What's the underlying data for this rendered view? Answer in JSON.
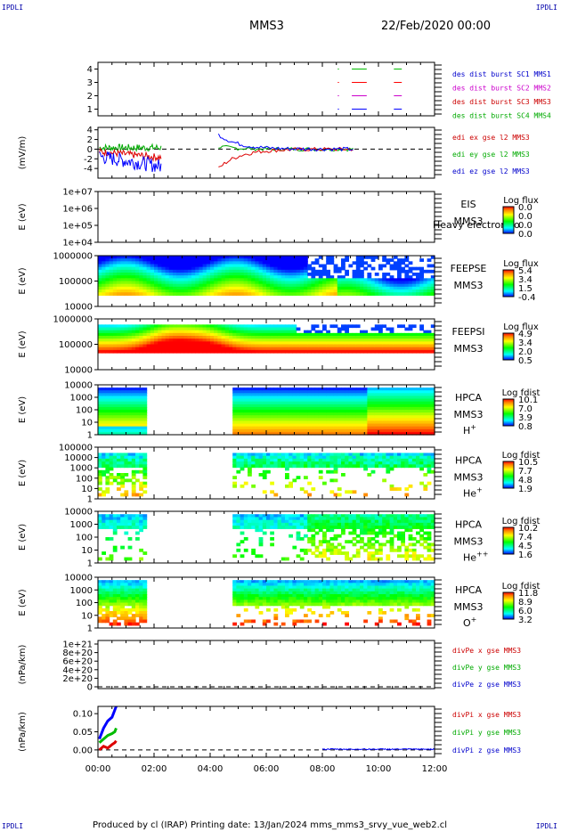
{
  "corners": {
    "tl": "IPDLI",
    "tr": "IPDLI",
    "bl": "IPDLI",
    "br": "IPDLI"
  },
  "header": {
    "spacecraft": "MMS3",
    "date": "22/Feb/2020 00:00"
  },
  "footer": {
    "text": "Produced by cl (IRAP)   Printing date: 13/Jan/2024   mms_mms3_srvy_vue_web2.cl"
  },
  "time_axis": {
    "range_hours": [
      0,
      12
    ],
    "ticks": [
      "00:00",
      "02:00",
      "04:00",
      "06:00",
      "08:00",
      "10:00",
      "12:00"
    ]
  },
  "chart_data": [
    {
      "type": "line",
      "panel": "burst",
      "ylim": [
        0.5,
        4.5
      ],
      "yticks": [
        "4",
        "3",
        "2",
        "1"
      ],
      "legend": [
        "des dist burst SC1 MMS1",
        "des dist burst SC2 MMS2",
        "des dist burst SC3 MMS3",
        "des dist burst SC4 MMS4"
      ],
      "legend_colors": [
        "#0000cc",
        "#cc00cc",
        "#cc0000",
        "#00aa00"
      ],
      "series": [
        {
          "name": "des dist burst SC1 MMS1",
          "level": 4,
          "color": "#00bb00",
          "segments": [
            [
              8.55,
              8.56
            ],
            [
              9.05,
              9.55
            ],
            [
              10.55,
              10.8
            ]
          ]
        },
        {
          "name": "des dist burst SC2 MMS2",
          "level": 3,
          "color": "#ff0000",
          "segments": [
            [
              8.55,
              8.56
            ],
            [
              9.05,
              9.55
            ],
            [
              10.55,
              10.8
            ]
          ]
        },
        {
          "name": "des dist burst SC3 MMS3",
          "level": 2,
          "color": "#cc00cc",
          "segments": [
            [
              8.55,
              8.56
            ],
            [
              9.05,
              9.55
            ],
            [
              10.55,
              10.8
            ]
          ]
        },
        {
          "name": "des dist burst SC4 MMS4",
          "level": 1,
          "color": "#0000ff",
          "segments": [
            [
              8.55,
              8.56
            ],
            [
              9.05,
              9.55
            ],
            [
              10.55,
              10.8
            ]
          ]
        }
      ]
    },
    {
      "type": "line",
      "panel": "edi",
      "ylabel": "(mV/m)",
      "ylim": [
        -6,
        4.5
      ],
      "yticks": [
        "4",
        "2",
        "0",
        "-2",
        "-4"
      ],
      "legend": [
        "edi ex gse l2 MMS3",
        "edi ey gse l2 MMS3",
        "edi ez gse l2 MMS3"
      ],
      "legend_colors": [
        "#cc0000",
        "#00aa00",
        "#0000cc"
      ],
      "gaps": [
        [
          2.3,
          4.3
        ]
      ],
      "ranges_hours": [
        [
          0.05,
          2.25
        ],
        [
          4.3,
          9.1
        ]
      ]
    },
    {
      "type": "heatmap",
      "panel": "EIS",
      "ylabel": "E (eV)",
      "yticks": [
        "1e+07",
        "1e+06",
        "1e+05",
        "1e+04"
      ],
      "instrument": [
        "EIS",
        "MMS3"
      ],
      "overlay_text": "Heavy electron to",
      "colorbar": {
        "title": "Log flux",
        "ticks": [
          "0.0",
          "0.0",
          "0.0",
          "0.0"
        ]
      },
      "has_data": false
    },
    {
      "type": "heatmap",
      "panel": "FEEPSE",
      "ylabel": "E (eV)",
      "yticks": [
        "1000000",
        "100000",
        "10000"
      ],
      "instrument": [
        "FEEPSE",
        "MMS3"
      ],
      "colorbar": {
        "title": "Log flux",
        "ticks": [
          "5.4",
          "3.4",
          "1.5",
          "-0.4"
        ]
      }
    },
    {
      "type": "heatmap",
      "panel": "FEEPSI",
      "ylabel": "E (eV)",
      "yticks": [
        "1000000",
        "100000",
        "10000"
      ],
      "instrument": [
        "FEEPSI",
        "MMS3"
      ],
      "colorbar": {
        "title": "Log flux",
        "ticks": [
          "4.9",
          "3.4",
          "2.0",
          "0.5"
        ]
      }
    },
    {
      "type": "heatmap",
      "panel": "HPCA H+",
      "ylabel": "E (eV)",
      "yticks": [
        "10000",
        "1000",
        "100",
        "10",
        "1"
      ],
      "instrument": [
        "HPCA",
        "MMS3"
      ],
      "species": "H",
      "species_sup": "+",
      "colorbar": {
        "title": "Log fdist",
        "ticks": [
          "10.1",
          "7.0",
          "3.9",
          "0.8"
        ]
      },
      "gaps": [
        [
          1.72,
          4.85
        ]
      ]
    },
    {
      "type": "heatmap",
      "panel": "HPCA He+",
      "ylabel": "E (eV)",
      "yticks": [
        "100000",
        "10000",
        "1000",
        "100",
        "10",
        "1"
      ],
      "instrument": [
        "HPCA",
        "MMS3"
      ],
      "species": "He",
      "species_sup": "+",
      "colorbar": {
        "title": "Log fdist",
        "ticks": [
          "10.5",
          "7.7",
          "4.8",
          "1.9"
        ]
      },
      "gaps": [
        [
          1.72,
          4.85
        ]
      ]
    },
    {
      "type": "heatmap",
      "panel": "HPCA He++",
      "ylabel": "E (eV)",
      "yticks": [
        "10000",
        "1000",
        "100",
        "10",
        "1"
      ],
      "instrument": [
        "HPCA",
        "MMS3"
      ],
      "species": "He",
      "species_sup": "++",
      "colorbar": {
        "title": "Log fdist",
        "ticks": [
          "10.2",
          "7.4",
          "4.5",
          "1.6"
        ]
      },
      "gaps": [
        [
          1.72,
          4.85
        ]
      ]
    },
    {
      "type": "heatmap",
      "panel": "HPCA O+",
      "ylabel": "E (eV)",
      "yticks": [
        "10000",
        "1000",
        "100",
        "10",
        "1"
      ],
      "instrument": [
        "HPCA",
        "MMS3"
      ],
      "species": "O",
      "species_sup": "+",
      "colorbar": {
        "title": "Log fdist",
        "ticks": [
          "11.8",
          "8.9",
          "6.0",
          "3.2"
        ]
      },
      "gaps": [
        [
          1.72,
          4.85
        ]
      ]
    },
    {
      "type": "line",
      "panel": "divPe",
      "ylabel": "(nPa/km)",
      "yticks": [
        "1e+21",
        "8e+20",
        "6e+20",
        "4e+20",
        "2e+20",
        "0"
      ],
      "ylim": [
        0,
        1e+21
      ],
      "legend": [
        "divPe x gse MMS3",
        "divPe y gse MMS3",
        "divPe z gse MMS3"
      ],
      "legend_colors": [
        "#cc0000",
        "#00aa00",
        "#0000cc"
      ],
      "has_data": false
    },
    {
      "type": "line",
      "panel": "divPi",
      "ylabel": "(nPa/km)",
      "yticks": [
        "0.10",
        "0.05",
        "0.00"
      ],
      "ylim": [
        -0.02,
        0.12
      ],
      "legend": [
        "divPi x gse MMS3",
        "divPi y gse MMS3",
        "divPi z gse MMS3"
      ],
      "legend_colors": [
        "#cc0000",
        "#00aa00",
        "#0000cc"
      ],
      "series": [
        {
          "name": "divPi z gse MMS3",
          "color": "#0000ff",
          "x": [
            0.05,
            0.2,
            0.35,
            0.5,
            0.6,
            0.65
          ],
          "y": [
            0.03,
            0.06,
            0.08,
            0.09,
            0.11,
            0.12
          ]
        },
        {
          "name": "divPi y gse MMS3",
          "color": "#00bb00",
          "x": [
            0.05,
            0.2,
            0.35,
            0.5,
            0.6,
            0.65
          ],
          "y": [
            0.02,
            0.03,
            0.04,
            0.045,
            0.05,
            0.06
          ]
        },
        {
          "name": "divPi x gse MMS3",
          "color": "#dd0000",
          "x": [
            0.05,
            0.2,
            0.35,
            0.5,
            0.6,
            0.65
          ],
          "y": [
            0.0,
            0.01,
            0.005,
            0.015,
            0.02,
            0.025
          ]
        }
      ],
      "low_level_range_hours": [
        8.0,
        12.0
      ]
    }
  ]
}
